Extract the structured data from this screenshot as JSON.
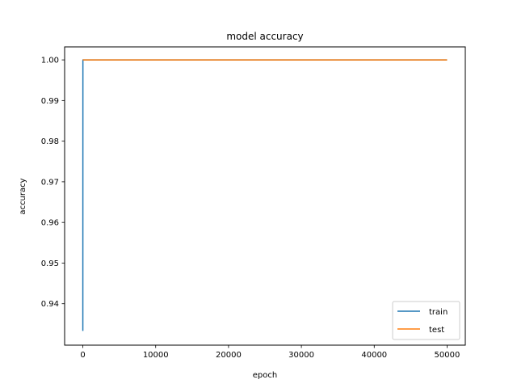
{
  "chart_data": {
    "type": "line",
    "title": "model accuracy",
    "xlabel": "epoch",
    "ylabel": "accuracy",
    "xlim": [
      -2500,
      52500
    ],
    "ylim": [
      0.9298,
      1.0032
    ],
    "x_ticks": [
      0,
      10000,
      20000,
      30000,
      40000,
      50000
    ],
    "x_tick_labels": [
      "0",
      "10000",
      "20000",
      "30000",
      "40000",
      "50000"
    ],
    "y_ticks": [
      0.94,
      0.95,
      0.96,
      0.97,
      0.98,
      0.99,
      1.0
    ],
    "y_tick_labels": [
      "0.94",
      "0.95",
      "0.96",
      "0.97",
      "0.98",
      "0.99",
      "1.00"
    ],
    "grid": false,
    "legend_position": "lower-right",
    "series": [
      {
        "name": "train",
        "color": "#1f77b4",
        "x": [
          0,
          10,
          50000
        ],
        "y": [
          0.9333,
          1.0,
          1.0
        ]
      },
      {
        "name": "test",
        "color": "#ff7f0e",
        "x": [
          0,
          50000
        ],
        "y": [
          1.0,
          1.0
        ]
      }
    ]
  }
}
